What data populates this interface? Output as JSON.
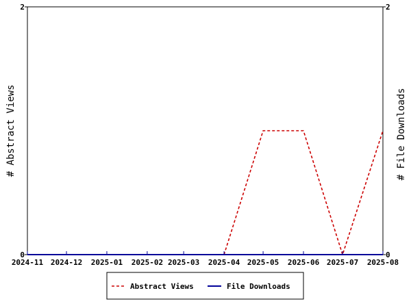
{
  "chart_data": {
    "type": "line",
    "x": [
      "2024-11",
      "2024-12",
      "2025-01",
      "2025-02",
      "2025-03",
      "2025-04",
      "2025-05",
      "2025-06",
      "2025-07",
      "2025-08"
    ],
    "xlim": [
      "2024-11-01",
      "2025-08-01"
    ],
    "y_left": {
      "label": "# Abstract Views",
      "ylim": [
        0,
        2
      ],
      "ticks": [
        "0",
        "2"
      ]
    },
    "y_right": {
      "label": "# File Downloads",
      "ylim": [
        0,
        2
      ],
      "ticks": [
        "0",
        "2"
      ]
    },
    "series": [
      {
        "name": "Abstract Views",
        "axis": "left",
        "color": "#cc0000",
        "style": "dashed",
        "values": [
          0,
          0,
          0,
          0,
          0,
          0,
          1,
          1,
          0,
          1
        ]
      },
      {
        "name": "File Downloads",
        "axis": "right",
        "color": "#000099",
        "style": "solid",
        "values": [
          0,
          0,
          0,
          0,
          0,
          0,
          0,
          0,
          0,
          0
        ]
      }
    ],
    "grid": false,
    "legend_position": "bottom"
  }
}
